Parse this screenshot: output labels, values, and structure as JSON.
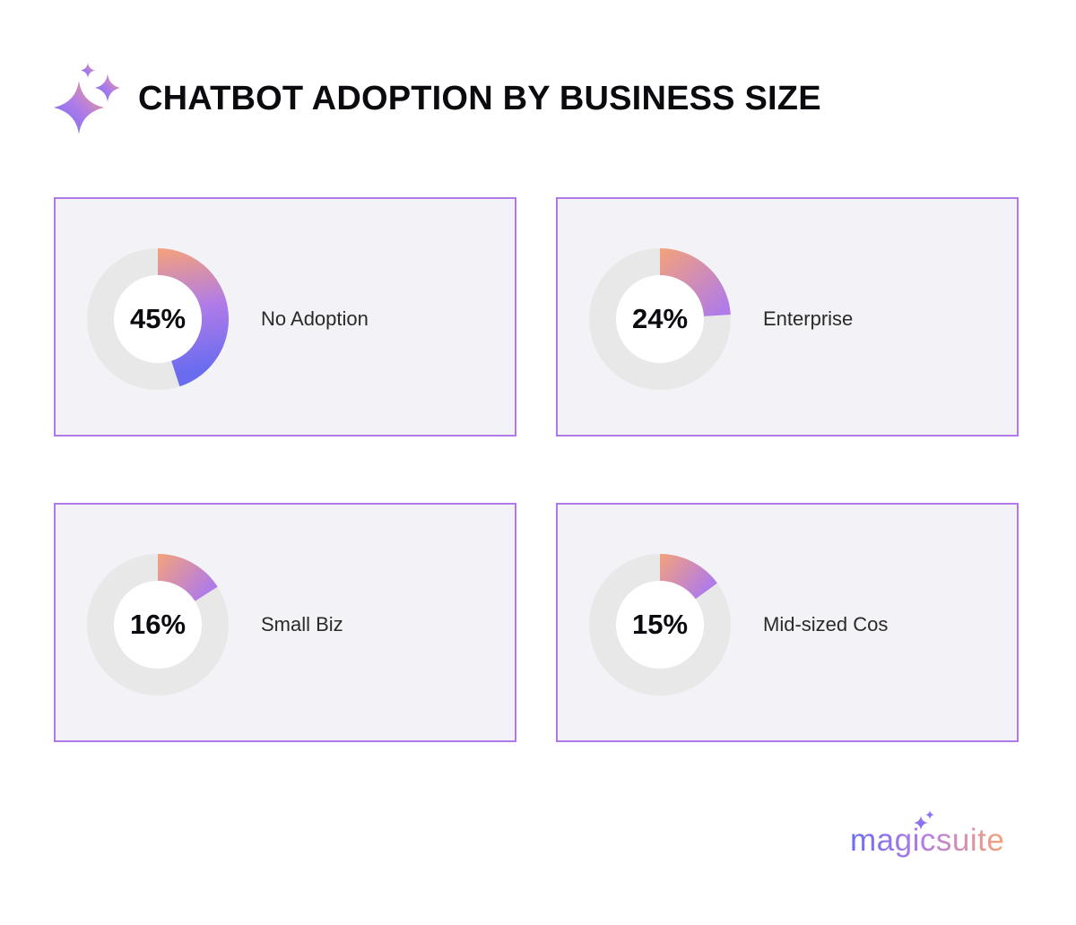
{
  "title": "CHATBOT ADOPTION BY BUSINESS SIZE",
  "colors": {
    "card_border": "#b07be8",
    "card_bg": "#f2f2f7",
    "track": "#e8e8e8",
    "gradient_start": "#f5a27a",
    "gradient_mid": "#b07be8",
    "gradient_end": "#6a6cf0"
  },
  "icons": {
    "header": "sparkles-icon",
    "brand": "sparkles-icon"
  },
  "brand": {
    "name": "magicsuite"
  },
  "chart_data": [
    {
      "type": "pie",
      "label": "No Adoption",
      "value": 45,
      "display": "45%"
    },
    {
      "type": "pie",
      "label": "Enterprise",
      "value": 24,
      "display": "24%"
    },
    {
      "type": "pie",
      "label": "Small Biz",
      "value": 16,
      "display": "16%"
    },
    {
      "type": "pie",
      "label": "Mid-sized Cos",
      "value": 15,
      "display": "15%"
    }
  ]
}
